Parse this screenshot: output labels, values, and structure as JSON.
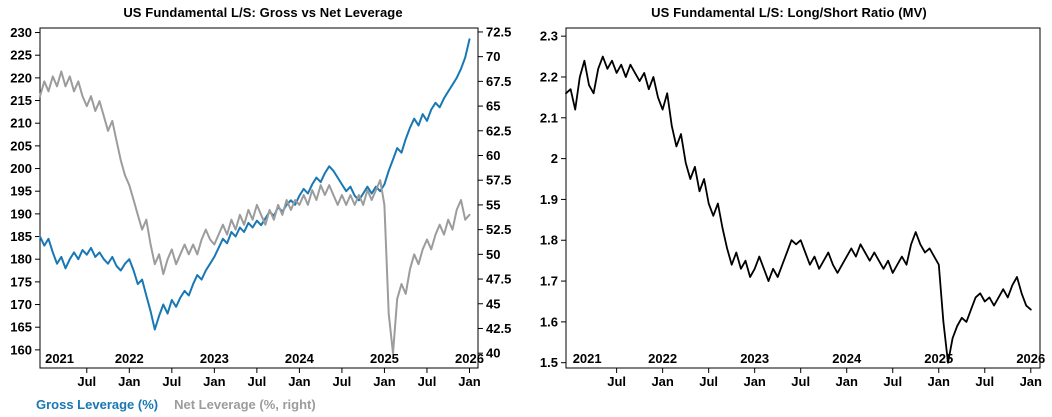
{
  "page": {
    "background": "#ffffff"
  },
  "chart_data": [
    {
      "type": "line",
      "title": "US Fundamental L/S: Gross vs Net Leverage",
      "xlim": [
        2020.95,
        2026.1
      ],
      "x_start": 2020.95,
      "x_step": 0.05,
      "axes": {
        "left": {
          "lim": [
            156,
            231
          ],
          "ticks": [
            "160",
            "165",
            "170",
            "175",
            "180",
            "185",
            "190",
            "195",
            "200",
            "205",
            "210",
            "215",
            "220",
            "225",
            "230"
          ]
        },
        "right": {
          "lim": [
            38.5,
            72.9
          ],
          "ticks": [
            "40",
            "42.5",
            "45",
            "47.5",
            "50",
            "52.5",
            "55",
            "57.5",
            "60",
            "62.5",
            "65",
            "67.5",
            "70",
            "72.5"
          ]
        }
      },
      "x_year_labels": [
        {
          "label": "2021",
          "x": 2021.18
        },
        {
          "label": "2022",
          "x": 2022
        },
        {
          "label": "2023",
          "x": 2023
        },
        {
          "label": "2024",
          "x": 2024
        },
        {
          "label": "2025",
          "x": 2025
        },
        {
          "label": "2026",
          "x": 2026
        }
      ],
      "x_month_labels": [
        {
          "label": "Jul",
          "x": 2021.5
        },
        {
          "label": "Jan",
          "x": 2022
        },
        {
          "label": "Jul",
          "x": 2022.5
        },
        {
          "label": "Jan",
          "x": 2023
        },
        {
          "label": "Jul",
          "x": 2023.5
        },
        {
          "label": "Jan",
          "x": 2024
        },
        {
          "label": "Jul",
          "x": 2024.5
        },
        {
          "label": "Jan",
          "x": 2025
        },
        {
          "label": "Jul",
          "x": 2025.5
        },
        {
          "label": "Jan",
          "x": 2026
        }
      ],
      "series": [
        {
          "name": "Gross Leverage (%)",
          "slug": "gross-leverage-line",
          "axis": "left",
          "color": "#1878b4",
          "linewidth": 2,
          "y": [
            185,
            183,
            184.5,
            181.5,
            179,
            180.5,
            178,
            180,
            181.5,
            180,
            182,
            181,
            182.5,
            180.5,
            181.5,
            180,
            179,
            180.5,
            178.5,
            177.5,
            179,
            180,
            177.5,
            174.5,
            175.5,
            172,
            168.5,
            164.5,
            167.5,
            170,
            168,
            171,
            169.5,
            171.5,
            173,
            172,
            174.5,
            176.5,
            175.5,
            177.5,
            179,
            180.5,
            182.5,
            184.5,
            183.5,
            186,
            185,
            187,
            186,
            188,
            187,
            188.5,
            187.5,
            189,
            190.5,
            189.5,
            191.5,
            190.5,
            192,
            193,
            192,
            194,
            195.5,
            194.5,
            196.5,
            198,
            197,
            199,
            200.5,
            199.5,
            198,
            196.5,
            195,
            196,
            194,
            193,
            194.5,
            196,
            194.5,
            196,
            195,
            196.5,
            199.5,
            202,
            204.5,
            203.5,
            206.5,
            209,
            211,
            209.5,
            212,
            210.5,
            213,
            214.5,
            213.5,
            215.5,
            217,
            218.5,
            220,
            222,
            224.5,
            228.5
          ]
        },
        {
          "name": "Net Leverage (%, right)",
          "slug": "net-leverage-line",
          "axis": "right",
          "color": "#9c9c9c",
          "linewidth": 2,
          "y": [
            66,
            67.5,
            66.5,
            68,
            67,
            68.5,
            67,
            68,
            66.5,
            67.5,
            66,
            65,
            66,
            64.5,
            65.5,
            64,
            62.5,
            63.5,
            61.5,
            59.5,
            58,
            57,
            55.5,
            54,
            52.5,
            53.5,
            51,
            49,
            50,
            48,
            49.5,
            50.5,
            49,
            50,
            51,
            50,
            51,
            50,
            51.5,
            52.5,
            51.5,
            51,
            52,
            53,
            52,
            53.5,
            52.5,
            54,
            53,
            54.5,
            53.5,
            55,
            54,
            53,
            54.5,
            53.5,
            55,
            54,
            55.5,
            54.5,
            55.5,
            55,
            56,
            55,
            56.5,
            55.5,
            57,
            56,
            57,
            56,
            55,
            56,
            55,
            56,
            55,
            56,
            55,
            56.5,
            55.5,
            56.5,
            57.5,
            55,
            44,
            40,
            45.5,
            47,
            46,
            48.5,
            50,
            49,
            50.5,
            51.5,
            50.5,
            52,
            53,
            52,
            53.5,
            52.5,
            54.5,
            55.5,
            53.5,
            54
          ]
        }
      ],
      "legend": [
        {
          "label": "Gross Leverage (%)",
          "color": "#1878b4"
        },
        {
          "label": "Net Leverage (%, right)",
          "color": "#9c9c9c"
        }
      ]
    },
    {
      "type": "line",
      "title": "US Fundamental L/S: Long/Short Ratio (MV)",
      "xlim": [
        2020.95,
        2026.1
      ],
      "x_start": 2020.95,
      "x_step": 0.05,
      "axes": {
        "left": {
          "lim": [
            1.487,
            2.32
          ],
          "ticks": [
            "1.5",
            "1.6",
            "1.7",
            "1.8",
            "1.9",
            "2",
            "2.1",
            "2.2",
            "2.3"
          ]
        }
      },
      "x_year_labels": [
        {
          "label": "2021",
          "x": 2021.18
        },
        {
          "label": "2022",
          "x": 2022
        },
        {
          "label": "2023",
          "x": 2023
        },
        {
          "label": "2024",
          "x": 2024
        },
        {
          "label": "2025",
          "x": 2025
        },
        {
          "label": "2026",
          "x": 2026
        }
      ],
      "x_month_labels": [
        {
          "label": "Jul",
          "x": 2021.5
        },
        {
          "label": "Jan",
          "x": 2022
        },
        {
          "label": "Jul",
          "x": 2022.5
        },
        {
          "label": "Jan",
          "x": 2023
        },
        {
          "label": "Jul",
          "x": 2023.5
        },
        {
          "label": "Jan",
          "x": 2024
        },
        {
          "label": "Jul",
          "x": 2024.5
        },
        {
          "label": "Jan",
          "x": 2025
        },
        {
          "label": "Jul",
          "x": 2025.5
        },
        {
          "label": "Jan",
          "x": 2026
        }
      ],
      "series": [
        {
          "name": "Long/Short Ratio (MV)",
          "slug": "long-short-ratio-line",
          "axis": "left",
          "color": "#000000",
          "linewidth": 1.8,
          "y": [
            2.16,
            2.17,
            2.12,
            2.2,
            2.24,
            2.18,
            2.16,
            2.22,
            2.25,
            2.22,
            2.24,
            2.21,
            2.23,
            2.2,
            2.23,
            2.21,
            2.19,
            2.21,
            2.17,
            2.2,
            2.15,
            2.12,
            2.16,
            2.08,
            2.03,
            2.06,
            1.99,
            1.95,
            1.98,
            1.92,
            1.95,
            1.89,
            1.86,
            1.89,
            1.83,
            1.78,
            1.74,
            1.77,
            1.73,
            1.75,
            1.71,
            1.73,
            1.76,
            1.73,
            1.7,
            1.73,
            1.71,
            1.74,
            1.77,
            1.8,
            1.79,
            1.8,
            1.77,
            1.74,
            1.76,
            1.73,
            1.75,
            1.77,
            1.74,
            1.72,
            1.74,
            1.76,
            1.78,
            1.76,
            1.79,
            1.77,
            1.75,
            1.77,
            1.75,
            1.73,
            1.75,
            1.72,
            1.74,
            1.76,
            1.74,
            1.79,
            1.82,
            1.79,
            1.77,
            1.78,
            1.76,
            1.74,
            1.6,
            1.5,
            1.56,
            1.59,
            1.61,
            1.6,
            1.63,
            1.66,
            1.67,
            1.65,
            1.66,
            1.64,
            1.66,
            1.68,
            1.66,
            1.69,
            1.71,
            1.67,
            1.64,
            1.63
          ]
        }
      ],
      "legend": []
    }
  ]
}
